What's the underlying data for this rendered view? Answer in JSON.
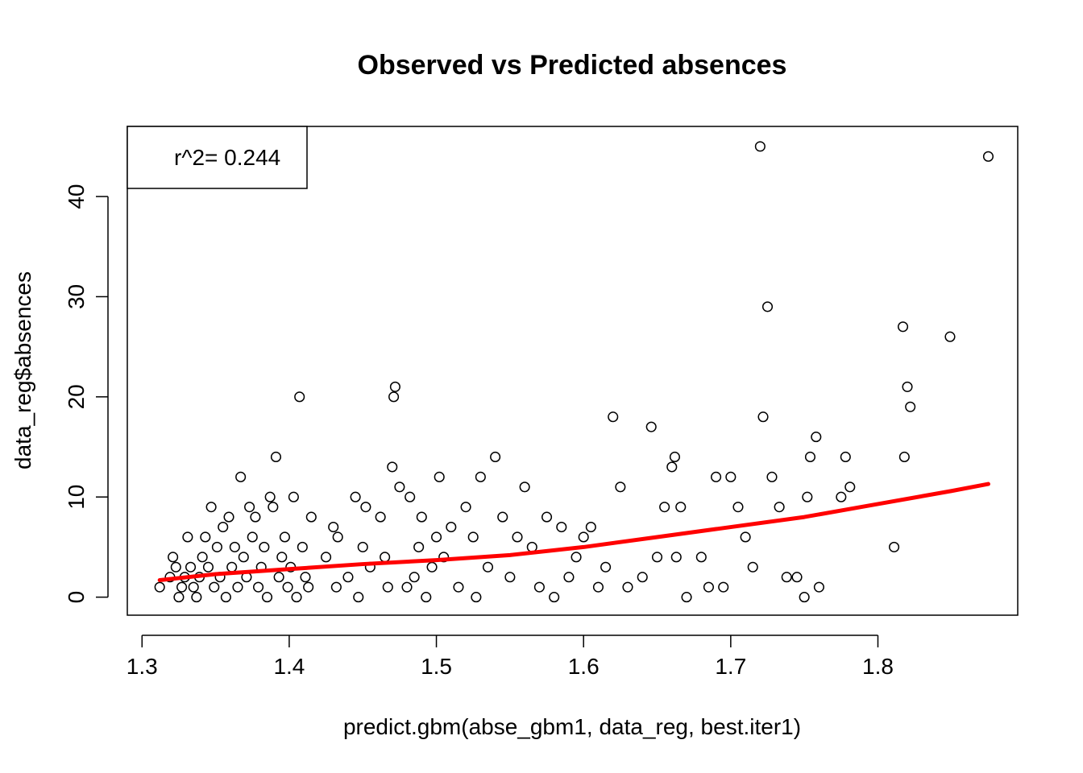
{
  "chart_data": {
    "type": "scatter",
    "title": "Observed vs Predicted absences",
    "xlabel": "predict.gbm(abse_gbm1, data_reg, best.iter1)",
    "ylabel": "data_reg$absences",
    "xlim": [
      1.29,
      1.895
    ],
    "ylim": [
      -1.8,
      47
    ],
    "x_ticks": [
      1.3,
      1.4,
      1.5,
      1.6,
      1.7,
      1.8
    ],
    "x_tick_labels": [
      "1.3",
      "1.4",
      "1.5",
      "1.6",
      "1.7",
      "1.8"
    ],
    "y_ticks": [
      0,
      10,
      20,
      30,
      40
    ],
    "y_tick_labels": [
      "0",
      "10",
      "20",
      "30",
      "40"
    ],
    "grid": false,
    "legend": {
      "placement": "top-left",
      "text": "r^2= 0.244"
    },
    "point_color": "#000000",
    "point_style": "open-circle",
    "fit_line_color": "#ff0000",
    "series": [
      {
        "type": "scatter",
        "x": [
          1.312,
          1.319,
          1.321,
          1.323,
          1.325,
          1.327,
          1.329,
          1.331,
          1.333,
          1.335,
          1.337,
          1.339,
          1.341,
          1.343,
          1.345,
          1.347,
          1.349,
          1.351,
          1.353,
          1.355,
          1.357,
          1.359,
          1.361,
          1.363,
          1.365,
          1.367,
          1.369,
          1.371,
          1.373,
          1.375,
          1.377,
          1.379,
          1.381,
          1.383,
          1.385,
          1.387,
          1.389,
          1.391,
          1.393,
          1.395,
          1.397,
          1.399,
          1.401,
          1.403,
          1.405,
          1.407,
          1.409,
          1.411,
          1.413,
          1.415,
          1.425,
          1.43,
          1.432,
          1.433,
          1.44,
          1.445,
          1.447,
          1.45,
          1.452,
          1.455,
          1.462,
          1.465,
          1.467,
          1.47,
          1.471,
          1.472,
          1.475,
          1.48,
          1.482,
          1.485,
          1.488,
          1.49,
          1.493,
          1.497,
          1.5,
          1.502,
          1.505,
          1.51,
          1.515,
          1.52,
          1.525,
          1.527,
          1.53,
          1.535,
          1.54,
          1.545,
          1.55,
          1.555,
          1.56,
          1.565,
          1.57,
          1.575,
          1.58,
          1.585,
          1.59,
          1.595,
          1.6,
          1.605,
          1.61,
          1.615,
          1.62,
          1.625,
          1.63,
          1.64,
          1.646,
          1.65,
          1.655,
          1.66,
          1.662,
          1.663,
          1.666,
          1.67,
          1.68,
          1.685,
          1.69,
          1.695,
          1.7,
          1.705,
          1.71,
          1.715,
          1.72,
          1.722,
          1.725,
          1.728,
          1.733,
          1.738,
          1.745,
          1.75,
          1.752,
          1.754,
          1.758,
          1.76,
          1.775,
          1.778,
          1.781,
          1.811,
          1.817,
          1.818,
          1.82,
          1.822,
          1.849,
          1.875
        ],
        "y": [
          1,
          2,
          4,
          3,
          0,
          1,
          2,
          6,
          3,
          1,
          0,
          2,
          4,
          6,
          3,
          9,
          1,
          5,
          2,
          7,
          0,
          8,
          3,
          5,
          1,
          12,
          4,
          2,
          9,
          6,
          8,
          1,
          3,
          5,
          0,
          10,
          9,
          14,
          2,
          4,
          6,
          1,
          3,
          10,
          0,
          20,
          5,
          2,
          1,
          8,
          4,
          7,
          1,
          6,
          2,
          10,
          0,
          5,
          9,
          3,
          8,
          4,
          1,
          13,
          20,
          21,
          11,
          1,
          10,
          2,
          5,
          8,
          0,
          3,
          6,
          12,
          4,
          7,
          1,
          9,
          6,
          0,
          12,
          3,
          14,
          8,
          2,
          6,
          11,
          5,
          1,
          8,
          0,
          7,
          2,
          4,
          6,
          7,
          1,
          3,
          18,
          11,
          1,
          2,
          17,
          4,
          9,
          13,
          14,
          4,
          9,
          0,
          4,
          1,
          12,
          1,
          12,
          9,
          6,
          3,
          45,
          18,
          29,
          12,
          9,
          2,
          2,
          0,
          10,
          14,
          16,
          1,
          10,
          14,
          11,
          5,
          27,
          14,
          21,
          19,
          26,
          44
        ]
      },
      {
        "type": "line",
        "name": "",
        "x": [
          1.312,
          1.35,
          1.4,
          1.45,
          1.5,
          1.55,
          1.6,
          1.65,
          1.7,
          1.75,
          1.8,
          1.85,
          1.875
        ],
        "y": [
          1.7,
          2.3,
          2.8,
          3.3,
          3.7,
          4.2,
          5.0,
          6.0,
          7.0,
          8.0,
          9.3,
          10.6,
          11.3
        ]
      }
    ]
  }
}
